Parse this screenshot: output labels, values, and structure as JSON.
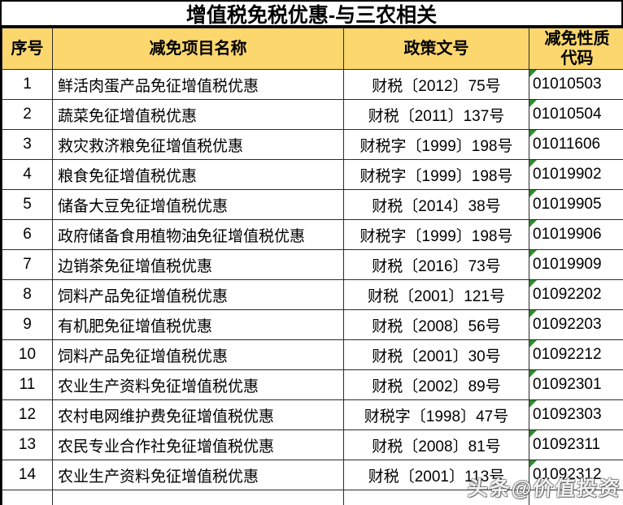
{
  "title": "增值税免税优惠-与三农相关",
  "watermark": "头条@价值投资",
  "colors": {
    "header_bg": "#fbd76e",
    "serial_bg": "#d7e4bc",
    "grid_line": "#2b2b2b",
    "error_triangle": "#2e8b2e"
  },
  "table": {
    "columns": [
      {
        "key": "index",
        "label": "序号"
      },
      {
        "key": "name",
        "label": "减免项目名称"
      },
      {
        "key": "policy",
        "label": "政策文号"
      },
      {
        "key": "code",
        "label": "减免性质\n代码"
      }
    ],
    "rows": [
      {
        "index": "1",
        "name": "鲜活肉蛋产品免征增值税优惠",
        "policy": "财税〔2012〕75号",
        "code": "01010503"
      },
      {
        "index": "2",
        "name": "蔬菜免征增值税优惠",
        "policy": "财税〔2011〕137号",
        "code": "01010504"
      },
      {
        "index": "3",
        "name": "救灾救济粮免征增值税优惠",
        "policy": "财税字〔1999〕198号",
        "code": "01011606"
      },
      {
        "index": "4",
        "name": "粮食免征增值税优惠",
        "policy": "财税字〔1999〕198号",
        "code": "01019902"
      },
      {
        "index": "5",
        "name": "储备大豆免征增值税优惠",
        "policy": "财税〔2014〕38号",
        "code": "01019905"
      },
      {
        "index": "6",
        "name": "政府储备食用植物油免征增值税优惠",
        "policy": "财税字〔1999〕198号",
        "code": "01019906"
      },
      {
        "index": "7",
        "name": "边销茶免征增值税优惠",
        "policy": "财税〔2016〕73号",
        "code": "01019909"
      },
      {
        "index": "8",
        "name": "饲料产品免征增值税优惠",
        "policy": "财税〔2001〕121号",
        "code": "01092202"
      },
      {
        "index": "9",
        "name": "有机肥免征增值税优惠",
        "policy": "财税〔2008〕56号",
        "code": "01092203"
      },
      {
        "index": "10",
        "name": "饲料产品免征增值税优惠",
        "policy": "财税〔2001〕30号",
        "code": "01092212"
      },
      {
        "index": "11",
        "name": "农业生产资料免征增值税优惠",
        "policy": "财税〔2002〕89号",
        "code": "01092301"
      },
      {
        "index": "12",
        "name": "农村电网维护费免征增值税优惠",
        "policy": "财税字〔1998〕47号",
        "code": "01092303"
      },
      {
        "index": "13",
        "name": "农民专业合作社免征增值税优惠",
        "policy": "财税〔2008〕81号",
        "code": "01092311"
      },
      {
        "index": "14",
        "name": "农业生产资料免征增值税优惠",
        "policy": "财税〔2001〕113号",
        "code": "01092312"
      }
    ]
  }
}
